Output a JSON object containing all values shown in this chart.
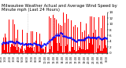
{
  "title": "Milwaukee Weather Actual and Average Wind Speed by Minute mph (Last 24 Hours)",
  "background_color": "#ffffff",
  "bar_color": "#ff0000",
  "line_color": "#0000ff",
  "grid_color": "#aaaaaa",
  "n_points": 144,
  "ymax": 14,
  "yticks": [
    0,
    2,
    4,
    6,
    8,
    10,
    12,
    14
  ],
  "ytick_labels": [
    "0",
    "2",
    "4",
    "6",
    "8",
    "10",
    "12",
    "14"
  ],
  "n_gridlines": 3,
  "title_fontsize": 3.8,
  "axis_fontsize": 3.0,
  "seed": 42
}
